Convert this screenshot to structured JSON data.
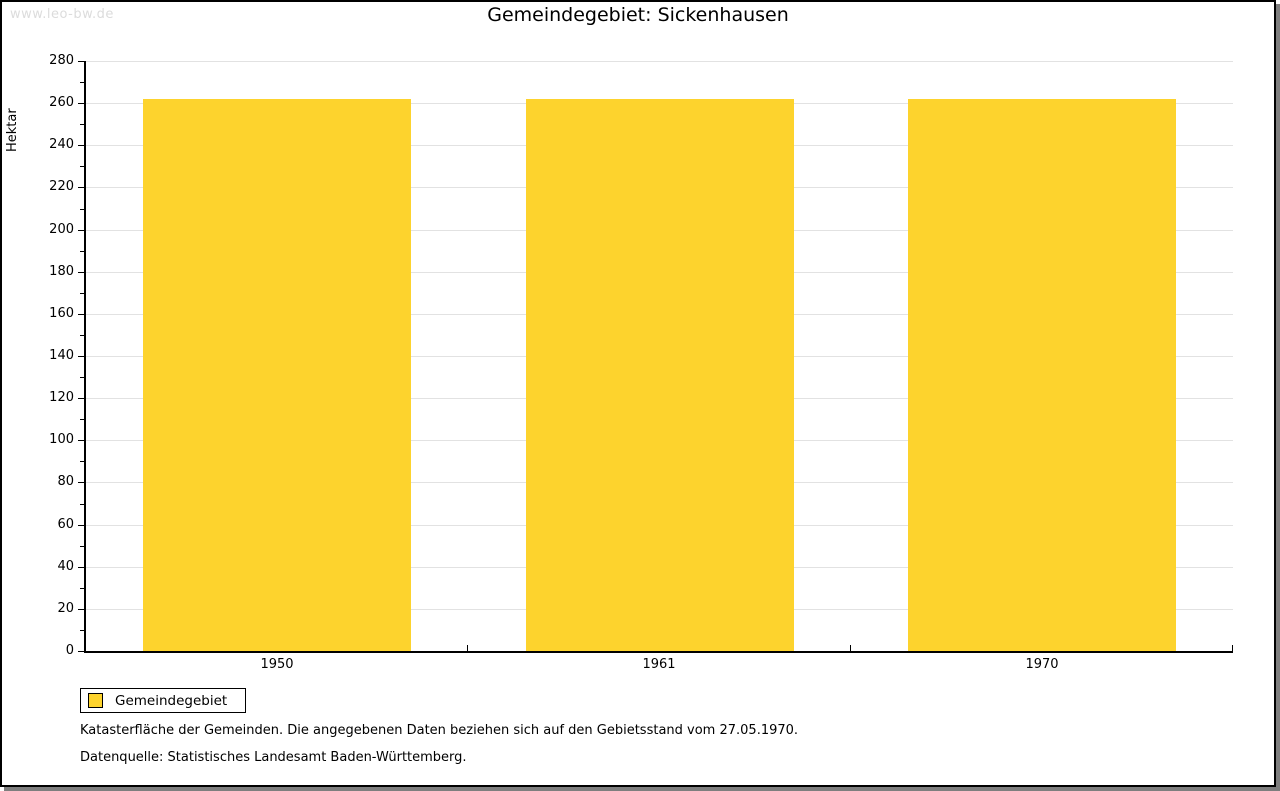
{
  "watermark": "www.leo-bw.de",
  "title": "Gemeindegebiet: Sickenhausen",
  "chart_data": {
    "type": "bar",
    "title": "Gemeindegebiet: Sickenhausen",
    "categories": [
      "1950",
      "1961",
      "1970"
    ],
    "series": [
      {
        "name": "Gemeindegebiet",
        "color": "#fdd32d",
        "values": [
          262,
          262,
          262
        ]
      }
    ],
    "xlabel": "",
    "ylabel": "Hektar",
    "ylim": [
      0,
      280
    ],
    "ytick_step": 20,
    "yminor_step": 10,
    "grid": "horizontal major gridlines only",
    "legend_position": "bottom-left outside plot"
  },
  "legend": {
    "items": [
      {
        "label": "Gemeindegebiet",
        "color": "#fdd32d"
      }
    ]
  },
  "footnotes": [
    "Katasterfläche der Gemeinden. Die angegebenen Daten beziehen sich auf den Gebietsstand vom 27.05.1970.",
    "Datenquelle: Statistisches Landesamt Baden-Württemberg."
  ],
  "colors": {
    "bar": "#fdd32d",
    "grid": "#e2e2e2",
    "axis": "#000000",
    "watermark": "#dcdcdc",
    "frame_border": "#000000",
    "frame_shadow": "#7e7e7e"
  }
}
